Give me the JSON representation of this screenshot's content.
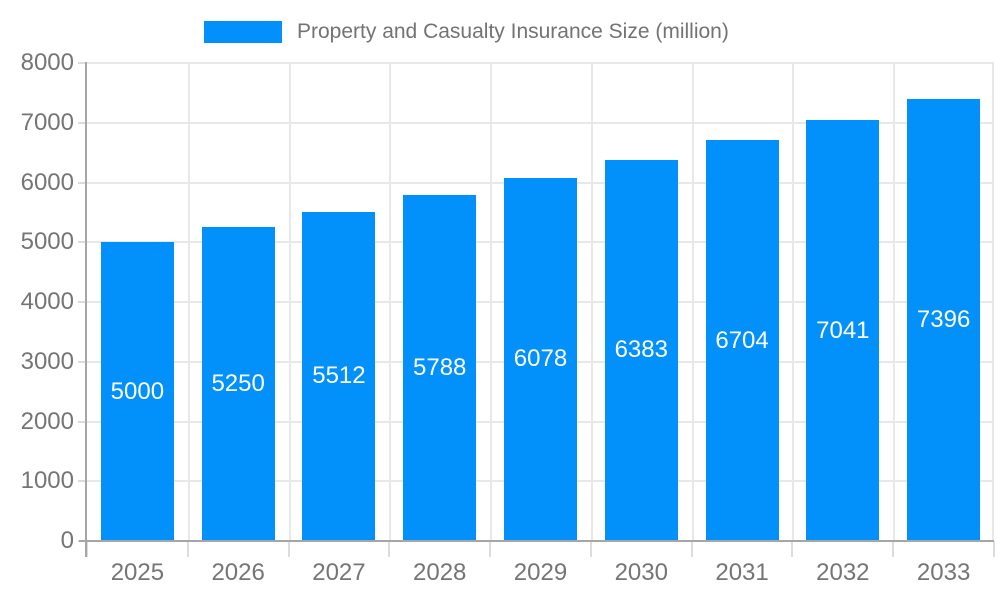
{
  "chart_data": {
    "type": "bar",
    "title": "Property and Casualty Insurance Size (million)",
    "categories": [
      "2025",
      "2026",
      "2027",
      "2028",
      "2029",
      "2030",
      "2031",
      "2032",
      "2033"
    ],
    "series": [
      {
        "name": "Property and Casualty Insurance Size (million)",
        "values": [
          5000,
          5250,
          5512,
          5788,
          6078,
          6383,
          6704,
          7041,
          7396
        ]
      }
    ],
    "xlabel": "",
    "ylabel": "",
    "ylim": [
      0,
      8000
    ],
    "y_ticks": [
      0,
      1000,
      2000,
      3000,
      4000,
      5000,
      6000,
      7000,
      8000
    ],
    "grid": "horizontal-and-vertical",
    "legend_position": "top",
    "value_labels": "inside-center-white"
  },
  "colors": {
    "bar": "#0290fa",
    "axis_line": "#a6a6a6",
    "grid_line": "#e8e8e8",
    "tick_line": "#dcdcdc",
    "axis_text": "#757575",
    "legend_text": "#737373",
    "value_label_text": "#ffffff",
    "background": "#ffffff"
  }
}
